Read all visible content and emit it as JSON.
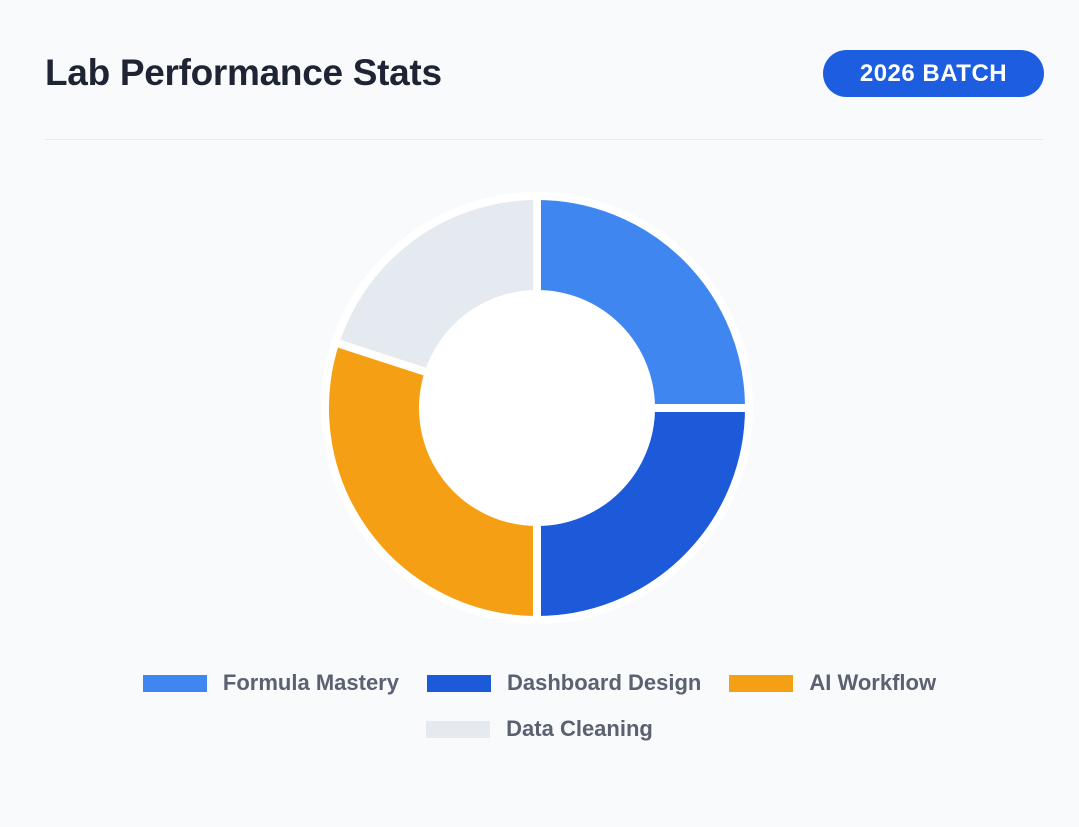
{
  "header": {
    "title": "Lab Performance Stats",
    "badge": "2026 BATCH"
  },
  "colors": {
    "accent": "#1d5ee0",
    "title": "#1e2433"
  },
  "chart_data": {
    "type": "pie",
    "donut": true,
    "title": "Lab Performance Stats",
    "categories": [
      "Formula Mastery",
      "Dashboard Design",
      "AI Workflow",
      "Data Cleaning"
    ],
    "values": [
      25,
      25,
      30,
      20
    ],
    "colors": [
      "#3f86f0",
      "#1d5ad9",
      "#f5a014",
      "#e5eaf1"
    ],
    "legend_position": "bottom"
  }
}
